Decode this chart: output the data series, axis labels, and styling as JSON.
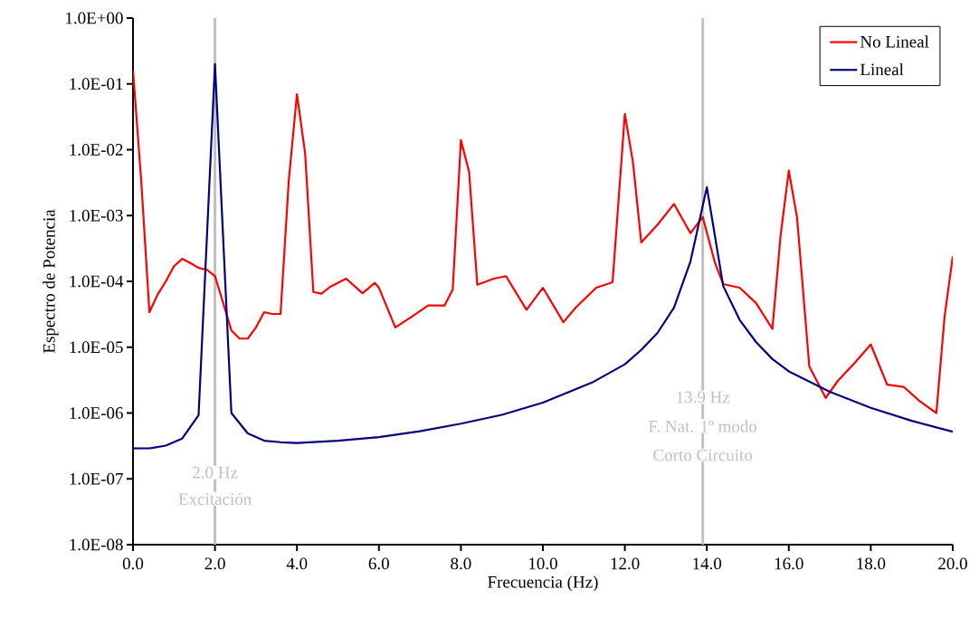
{
  "chart_data": {
    "type": "line",
    "xlabel": "Frecuencia (Hz)",
    "ylabel": "Espectro de Potencia",
    "log": "y",
    "legend": "top right",
    "grid": false,
    "marker": "none",
    "line_style": "solid",
    "xlim": [
      0,
      20
    ],
    "ylim": [
      1e-08,
      1
    ],
    "xticks": [
      {
        "value": 0,
        "label": "0.0"
      },
      {
        "value": 2,
        "label": "2.0"
      },
      {
        "value": 4,
        "label": "4.0"
      },
      {
        "value": 6,
        "label": "6.0"
      },
      {
        "value": 8,
        "label": "8.0"
      },
      {
        "value": 10,
        "label": "10.0"
      },
      {
        "value": 12,
        "label": "12.0"
      },
      {
        "value": 14,
        "label": "14.0"
      },
      {
        "value": 16,
        "label": "16.0"
      },
      {
        "value": 18,
        "label": "18.0"
      },
      {
        "value": 20,
        "label": "20.0"
      }
    ],
    "yticks": [
      {
        "value": 1e-08,
        "label": "1.0E-08"
      },
      {
        "value": 1e-07,
        "label": "1.0E-07"
      },
      {
        "value": 1e-06,
        "label": "1.0E-06"
      },
      {
        "value": 1e-05,
        "label": "1.0E-05"
      },
      {
        "value": 0.0001,
        "label": "1.0E-04"
      },
      {
        "value": 0.001,
        "label": "1.0E-03"
      },
      {
        "value": 0.01,
        "label": "1.0E-02"
      },
      {
        "value": 0.1,
        "label": "1.0E-01"
      },
      {
        "value": 1,
        "label": "1.0E+00"
      }
    ],
    "series": [
      {
        "name": "No Lineal",
        "color": "#ff0000",
        "x": [
          0.0,
          0.2,
          0.4,
          0.6,
          0.8,
          1.0,
          1.2,
          1.4,
          1.6,
          1.8,
          2.0,
          2.2,
          2.4,
          2.6,
          2.8,
          3.0,
          3.2,
          3.4,
          3.6,
          3.8,
          4.0,
          4.2,
          4.4,
          4.6,
          4.8,
          5.2,
          5.6,
          5.9,
          6.0,
          6.4,
          6.8,
          7.2,
          7.6,
          7.8,
          8.0,
          8.2,
          8.4,
          8.8,
          9.1,
          9.6,
          10.0,
          10.5,
          10.8,
          11.3,
          11.7,
          12.0,
          12.2,
          12.4,
          12.8,
          13.2,
          13.6,
          13.9,
          14.2,
          14.4,
          14.8,
          15.2,
          15.6,
          15.8,
          16.0,
          16.2,
          16.5,
          16.9,
          17.2,
          17.6,
          18.0,
          18.4,
          18.8,
          19.2,
          19.6,
          19.8,
          20.0
        ],
        "values": [
          0.16,
          0.0034,
          3.4e-05,
          6.3e-05,
          0.0001,
          0.00017,
          0.00022,
          0.00019,
          0.00016,
          0.00015,
          0.00012,
          4.7e-05,
          1.8e-05,
          1.35e-05,
          1.35e-05,
          2e-05,
          3.4e-05,
          3.2e-05,
          3.2e-05,
          0.0034,
          0.07,
          0.0087,
          6.9e-05,
          6.5e-05,
          8.2e-05,
          0.00011,
          6.6e-05,
          9.5e-05,
          8e-05,
          2e-05,
          2.9e-05,
          4.3e-05,
          4.3e-05,
          7.5e-05,
          0.014,
          0.0046,
          8.9e-05,
          0.00011,
          0.00012,
          3.7e-05,
          8e-05,
          2.4e-05,
          4e-05,
          8e-05,
          9.7e-05,
          0.035,
          0.0063,
          0.00039,
          0.00073,
          0.0015,
          0.00054,
          0.00095,
          0.00019,
          9.1e-05,
          8e-05,
          4.7e-05,
          1.9e-05,
          0.0005,
          0.0048,
          0.00095,
          5.1e-06,
          1.7e-06,
          3.1e-06,
          5.7e-06,
          1.1e-05,
          2.7e-06,
          2.5e-06,
          1.5e-06,
          1e-06,
          2.9e-05,
          0.00024
        ]
      },
      {
        "name": "Lineal",
        "color": "#000080",
        "x": [
          0.0,
          0.4,
          0.8,
          1.2,
          1.6,
          2.0,
          2.4,
          2.8,
          3.2,
          3.6,
          4.0,
          5.0,
          6.0,
          7.0,
          8.0,
          9.0,
          10.0,
          11.2,
          12.0,
          12.4,
          12.8,
          13.2,
          13.6,
          14.0,
          14.4,
          14.8,
          15.2,
          15.6,
          16.0,
          17.0,
          18.0,
          19.0,
          20.0
        ],
        "values": [
          2.9e-07,
          2.9e-07,
          3.2e-07,
          4.1e-07,
          9.3e-07,
          0.2,
          1e-06,
          4.9e-07,
          3.8e-07,
          3.6e-07,
          3.5e-07,
          3.8e-07,
          4.3e-07,
          5.3e-07,
          6.9e-07,
          9.4e-07,
          1.44e-06,
          2.9e-06,
          5.5e-06,
          9.1e-06,
          1.66e-05,
          4e-05,
          0.0002,
          0.0027,
          8.5e-05,
          2.6e-05,
          1.2e-05,
          6.6e-06,
          4.3e-06,
          2.1e-06,
          1.2e-06,
          7.6e-07,
          5.2e-07
        ]
      }
    ],
    "ref_lines": [
      {
        "axis": "x",
        "value": 2.0,
        "label": "2.0 Hz",
        "color": "#c0c0c0"
      },
      {
        "axis": "x",
        "value": 13.9,
        "label": "13.9 Hz",
        "color": "#c0c0c0"
      }
    ],
    "annotations": [
      "Excitación",
      "F. Nat. 1º modo",
      "Corto Circuito"
    ]
  }
}
